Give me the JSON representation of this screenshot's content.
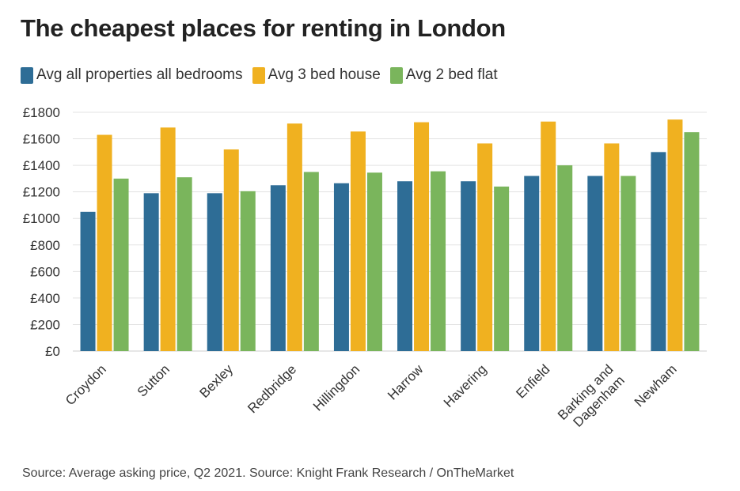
{
  "chart_data": {
    "type": "bar",
    "title": "The cheapest places for renting in London",
    "categories": [
      "Croydon",
      "Sutton",
      "Bexley",
      "Redbridge",
      "Hillingdon",
      "Harrow",
      "Havering",
      "Enfield",
      "Barking and Dagenham",
      "Newham"
    ],
    "series": [
      {
        "name": "Avg all properties all bedrooms",
        "color": "#2e6d96",
        "values": [
          1050,
          1190,
          1190,
          1250,
          1265,
          1280,
          1280,
          1320,
          1320,
          1500
        ]
      },
      {
        "name": "Avg 3 bed house",
        "color": "#f0b120",
        "values": [
          1630,
          1685,
          1520,
          1715,
          1655,
          1725,
          1565,
          1730,
          1565,
          1745
        ]
      },
      {
        "name": "Avg 2 bed flat",
        "color": "#7ab55c",
        "values": [
          1300,
          1310,
          1205,
          1350,
          1345,
          1355,
          1240,
          1400,
          1320,
          1650
        ]
      }
    ],
    "ylim": [
      0,
      1800
    ],
    "yticks": [
      0,
      200,
      400,
      600,
      800,
      1000,
      1200,
      1400,
      1600,
      1800
    ],
    "ytick_prefix": "£",
    "xlabel": "",
    "ylabel": "",
    "grid": true,
    "legend_position": "top-left"
  },
  "source": "Source: Average asking price, Q2 2021. Source: Knight Frank Research / OnTheMarket"
}
